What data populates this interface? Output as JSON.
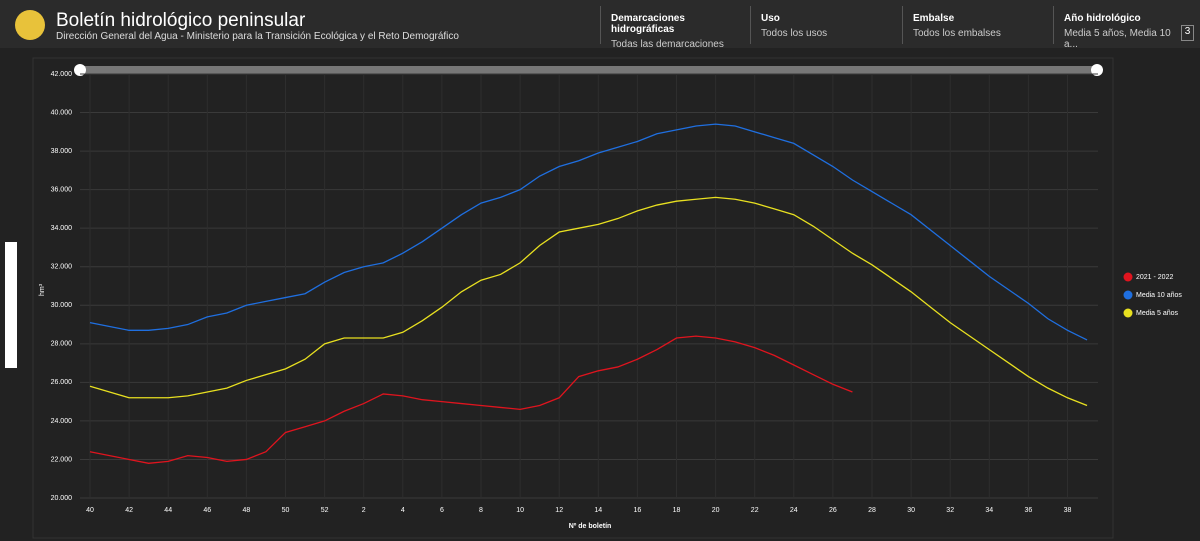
{
  "header": {
    "title": "Boletín hidrológico peninsular",
    "subtitle": "Dirección General del Agua - Ministerio para la Transición Ecológica y el Reto Demográfico",
    "filters": [
      {
        "label": "Demarcaciones hidrográficas",
        "value": "Todas las demarcaciones"
      },
      {
        "label": "Uso",
        "value": "Todos los usos"
      },
      {
        "label": "Embalse",
        "value": "Todos los embalses"
      },
      {
        "label": "Año hidrológico",
        "value": "Media 5 años, Media 10 a...",
        "badge": "3"
      }
    ]
  },
  "chart_data": {
    "type": "line",
    "ylabel": "hm³",
    "xlabel": "Nº de boletín",
    "categories": [
      40,
      null,
      42,
      null,
      44,
      null,
      46,
      null,
      48,
      null,
      50,
      null,
      52,
      null,
      2,
      null,
      4,
      null,
      6,
      null,
      8,
      null,
      10,
      null,
      12,
      null,
      14,
      null,
      16,
      null,
      18,
      null,
      20,
      null,
      22,
      null,
      24,
      null,
      26,
      null,
      28,
      null,
      30,
      null,
      32,
      null,
      34,
      null,
      36,
      null,
      38,
      null
    ],
    "ylim": [
      20000,
      42000
    ],
    "yticks": [
      {
        "value": 20000,
        "label": "20.000"
      },
      {
        "value": 22000,
        "label": "22.000"
      },
      {
        "value": 24000,
        "label": "24.000"
      },
      {
        "value": 26000,
        "label": "26.000"
      },
      {
        "value": 28000,
        "label": "28.000"
      },
      {
        "value": 30000,
        "label": "30.000"
      },
      {
        "value": 32000,
        "label": "32.000"
      },
      {
        "value": 34000,
        "label": "34.000"
      },
      {
        "value": 36000,
        "label": "36.000"
      },
      {
        "value": 38000,
        "label": "38.000"
      },
      {
        "value": 40000,
        "label": "40.000"
      },
      {
        "value": 42000,
        "label": "42.000"
      }
    ],
    "grid": true,
    "legend": "right",
    "series": [
      {
        "name": "2021 - 2022",
        "color": "#e0141e",
        "values": [
          22400,
          22200,
          22000,
          21800,
          21900,
          22200,
          22100,
          21900,
          22000,
          22400,
          23400,
          23700,
          24000,
          24500,
          24900,
          25400,
          25300,
          25100,
          25000,
          24900,
          24800,
          24700,
          24600,
          24800,
          25200,
          26300,
          26600,
          26800,
          27200,
          27700,
          28300,
          28400,
          28300,
          28100,
          27800,
          27400,
          26900,
          26400,
          25900,
          25500,
          null,
          null,
          null,
          null,
          null,
          null,
          null,
          null,
          null,
          null,
          null,
          null
        ]
      },
      {
        "name": "Media 10 años",
        "color": "#1f6fe0",
        "values": [
          29100,
          28900,
          28700,
          28700,
          28800,
          29000,
          29400,
          29600,
          30000,
          30200,
          30400,
          30600,
          31200,
          31700,
          32000,
          32200,
          32700,
          33300,
          34000,
          34700,
          35300,
          35600,
          36000,
          36700,
          37200,
          37500,
          37900,
          38200,
          38500,
          38900,
          39100,
          39300,
          39400,
          39300,
          39000,
          38700,
          38400,
          37800,
          37200,
          36500,
          35900,
          35300,
          34700,
          33900,
          33100,
          32300,
          31500,
          30800,
          30100,
          29300,
          28700,
          28200
        ]
      },
      {
        "name": "Media 5 años",
        "color": "#e8e020",
        "values": [
          25800,
          25500,
          25200,
          25200,
          25200,
          25300,
          25500,
          25700,
          26100,
          26400,
          26700,
          27200,
          28000,
          28300,
          28300,
          28300,
          28600,
          29200,
          29900,
          30700,
          31300,
          31600,
          32200,
          33100,
          33800,
          34000,
          34200,
          34500,
          34900,
          35200,
          35400,
          35500,
          35600,
          35500,
          35300,
          35000,
          34700,
          34100,
          33400,
          32700,
          32100,
          31400,
          30700,
          29900,
          29100,
          28400,
          27700,
          27000,
          26300,
          25700,
          25200,
          24800
        ]
      }
    ]
  }
}
